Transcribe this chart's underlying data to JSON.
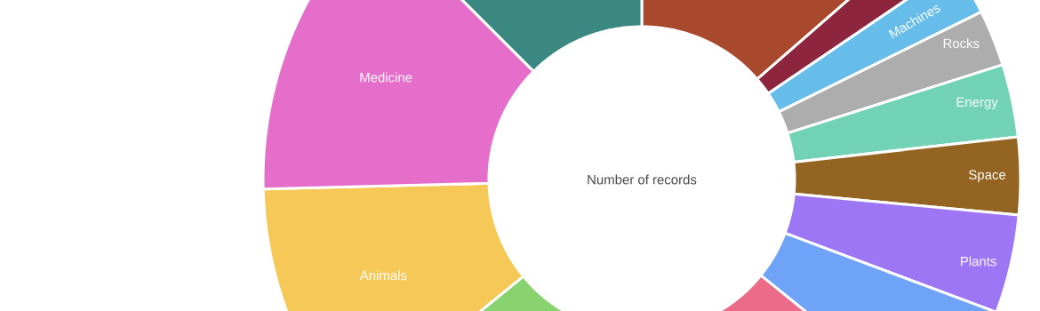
{
  "chart_data": {
    "type": "donut",
    "title": "Number of records",
    "categories": [
      null,
      null,
      "Machines",
      "Rocks",
      "Energy",
      "Space",
      "Plants",
      null,
      null,
      null,
      "Animals",
      "Medicine",
      null
    ],
    "values": [
      13.6,
      1.9,
      2.2,
      2.4,
      3.1,
      3.3,
      4.2,
      5.1,
      14.2,
      14.1,
      10.5,
      12.9,
      12.5
    ],
    "colors": [
      "#a8482d",
      "#8e253f",
      "#67bdea",
      "#adadad",
      "#72d2b4",
      "#946423",
      "#9d76f5",
      "#6ea3f7",
      "#eb6b88",
      "#88d26f",
      "#f6c858",
      "#e56ecb",
      "#3b8782"
    ]
  }
}
